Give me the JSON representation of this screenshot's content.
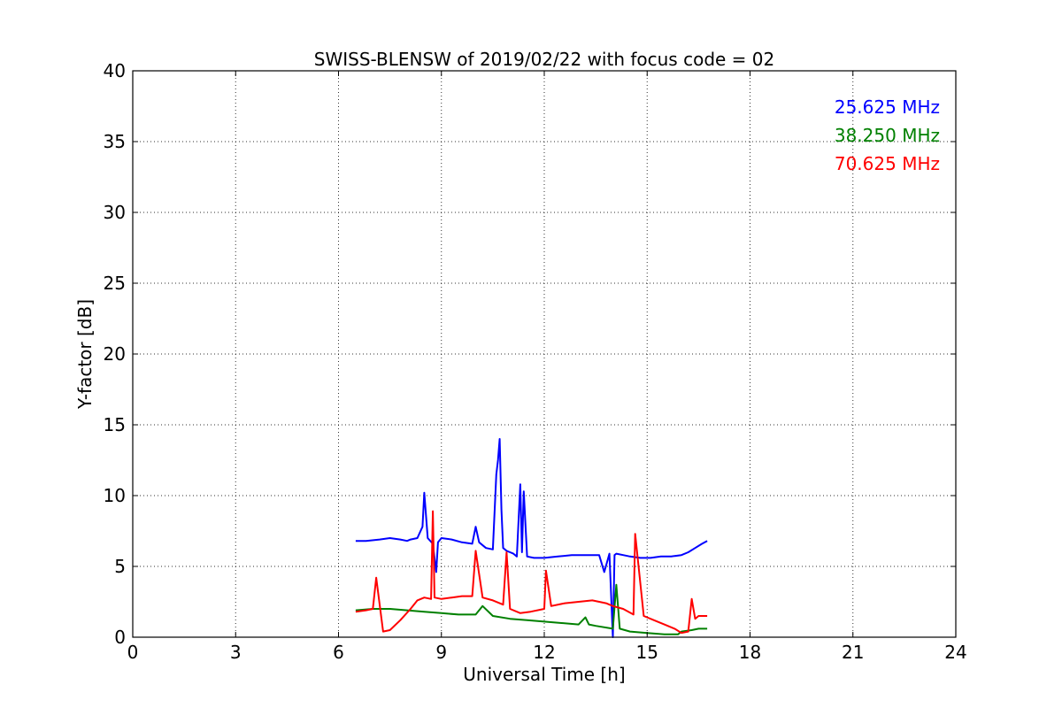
{
  "chart_data": {
    "type": "line",
    "title": "SWISS-BLENSW of 2019/02/22 with focus code = 02",
    "xlabel": "Universal Time [h]",
    "ylabel": "Y-factor [dB]",
    "xlim": [
      0,
      24
    ],
    "ylim": [
      0,
      40
    ],
    "xticks": [
      0,
      3,
      6,
      9,
      12,
      15,
      18,
      21,
      24
    ],
    "yticks": [
      0,
      5,
      10,
      15,
      20,
      25,
      30,
      35,
      40
    ],
    "grid": true,
    "legend_position": "top-right",
    "series": [
      {
        "name": "25.625 MHz",
        "color": "#0000ff",
        "x": [
          6.5,
          6.8,
          7.2,
          7.5,
          7.8,
          8.0,
          8.1,
          8.3,
          8.45,
          8.5,
          8.6,
          8.75,
          8.85,
          8.9,
          9.0,
          9.3,
          9.6,
          9.9,
          10.0,
          10.1,
          10.3,
          10.5,
          10.6,
          10.65,
          10.7,
          10.75,
          10.8,
          10.9,
          11.0,
          11.1,
          11.2,
          11.3,
          11.35,
          11.4,
          11.5,
          11.7,
          12.0,
          12.4,
          12.8,
          13.2,
          13.6,
          13.75,
          13.9,
          14.0,
          14.05,
          14.1,
          14.3,
          14.5,
          14.8,
          15.1,
          15.4,
          15.7,
          16.0,
          16.2,
          16.4,
          16.6,
          16.75
        ],
        "y": [
          6.8,
          6.8,
          6.9,
          7.0,
          6.9,
          6.8,
          6.9,
          7.0,
          7.8,
          10.2,
          7.0,
          6.6,
          4.6,
          6.7,
          7.0,
          6.9,
          6.7,
          6.6,
          7.8,
          6.7,
          6.3,
          6.2,
          11.5,
          12.5,
          14.0,
          9.0,
          6.3,
          6.1,
          6.0,
          5.9,
          5.7,
          10.8,
          6.0,
          10.3,
          5.7,
          5.6,
          5.6,
          5.7,
          5.8,
          5.8,
          5.8,
          4.6,
          5.9,
          0.0,
          5.8,
          5.9,
          5.8,
          5.7,
          5.6,
          5.6,
          5.7,
          5.7,
          5.8,
          6.0,
          6.3,
          6.6,
          6.8
        ]
      },
      {
        "name": "38.250 MHz",
        "color": "#008000",
        "x": [
          6.5,
          7.0,
          7.5,
          8.0,
          8.5,
          9.0,
          9.5,
          10.0,
          10.2,
          10.5,
          11.0,
          11.5,
          12.0,
          12.5,
          13.0,
          13.2,
          13.3,
          13.5,
          14.0,
          14.1,
          14.2,
          14.5,
          15.0,
          15.5,
          15.9,
          16.0,
          16.3,
          16.5,
          16.75
        ],
        "y": [
          1.9,
          2.0,
          2.0,
          1.9,
          1.8,
          1.7,
          1.6,
          1.6,
          2.2,
          1.5,
          1.3,
          1.2,
          1.1,
          1.0,
          0.9,
          1.4,
          0.9,
          0.8,
          0.6,
          3.7,
          0.6,
          0.4,
          0.3,
          0.2,
          0.2,
          0.4,
          0.5,
          0.6,
          0.6
        ]
      },
      {
        "name": "70.625 MHz",
        "color": "#ff0000",
        "x": [
          6.5,
          6.8,
          7.0,
          7.1,
          7.3,
          7.5,
          7.8,
          8.1,
          8.3,
          8.5,
          8.7,
          8.75,
          8.8,
          9.0,
          9.3,
          9.6,
          9.9,
          10.0,
          10.2,
          10.5,
          10.8,
          10.9,
          11.0,
          11.3,
          11.6,
          12.0,
          12.05,
          12.2,
          12.6,
          13.0,
          13.4,
          13.8,
          14.0,
          14.3,
          14.6,
          14.65,
          14.9,
          15.2,
          15.5,
          15.8,
          16.0,
          16.2,
          16.3,
          16.4,
          16.5,
          16.75
        ],
        "y": [
          1.8,
          1.9,
          2.0,
          4.2,
          0.4,
          0.5,
          1.2,
          2.0,
          2.6,
          2.8,
          2.7,
          8.9,
          2.8,
          2.7,
          2.8,
          2.9,
          2.9,
          6.1,
          2.8,
          2.6,
          2.3,
          6.0,
          2.0,
          1.7,
          1.8,
          2.0,
          4.7,
          2.2,
          2.4,
          2.5,
          2.6,
          2.4,
          2.2,
          2.0,
          1.6,
          7.3,
          1.5,
          1.2,
          0.9,
          0.6,
          0.3,
          0.4,
          2.7,
          1.3,
          1.5,
          1.5
        ]
      }
    ]
  }
}
